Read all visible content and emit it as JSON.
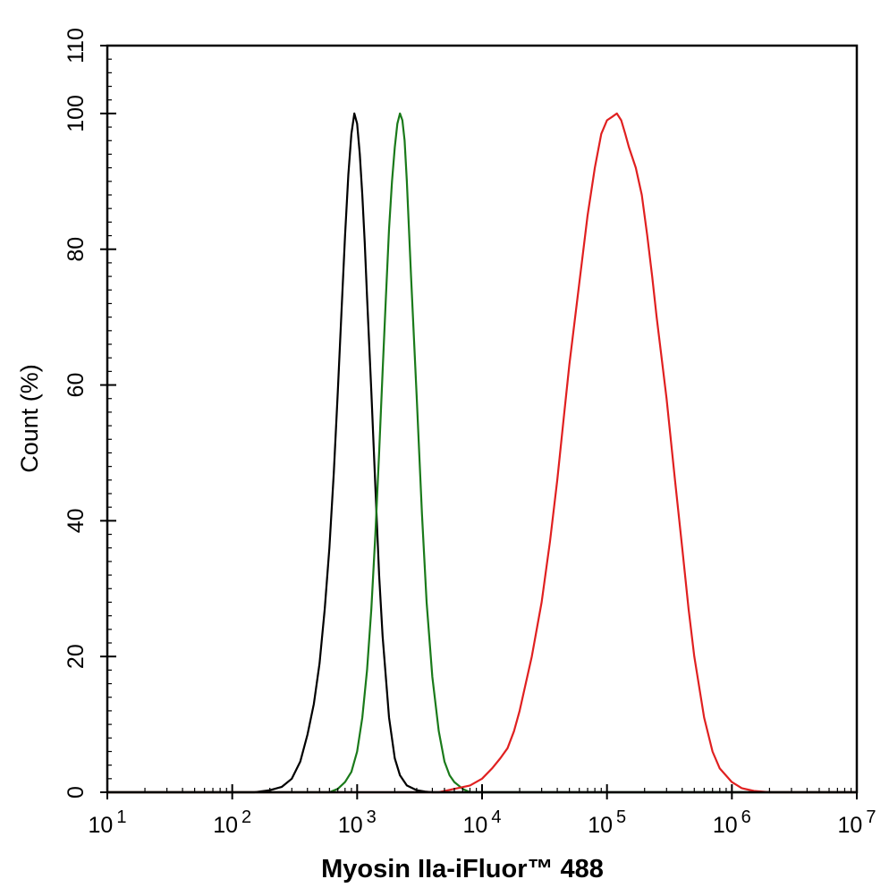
{
  "chart_data": {
    "type": "line",
    "title": "",
    "xlabel": "Myosin IIa-iFluor™ 488",
    "ylabel": "Count  (%)",
    "x_scale": "log",
    "xlim": [
      10,
      10000000
    ],
    "ylim": [
      0,
      110
    ],
    "grid": false,
    "legend": "none",
    "x_ticks": [
      {
        "base": "10",
        "exp": "1"
      },
      {
        "base": "10",
        "exp": "2"
      },
      {
        "base": "10",
        "exp": "3"
      },
      {
        "base": "10",
        "exp": "4"
      },
      {
        "base": "10",
        "exp": "5"
      },
      {
        "base": "10",
        "exp": "6"
      },
      {
        "base": "10",
        "exp": "7"
      }
    ],
    "y_ticks": [
      "0",
      "20",
      "40",
      "60",
      "80",
      "100",
      "110"
    ],
    "series": [
      {
        "color": "#000000",
        "x": [
          10,
          150,
          200,
          250,
          300,
          350,
          400,
          450,
          500,
          550,
          600,
          650,
          700,
          750,
          800,
          850,
          900,
          950,
          1000,
          1050,
          1100,
          1150,
          1200,
          1300,
          1400,
          1500,
          1600,
          1800,
          2000,
          2200,
          2500,
          3000,
          3500,
          4000,
          10000000
        ],
        "y": [
          0,
          0,
          0.3,
          0.8,
          2,
          4.5,
          8.5,
          13,
          19,
          27,
          36,
          47,
          59,
          71,
          82,
          91,
          97,
          100,
          98.5,
          94,
          88,
          81,
          73,
          59,
          45,
          32,
          23,
          11,
          5,
          2.5,
          1,
          0.3,
          0.1,
          0,
          0
        ]
      },
      {
        "color": "#1a7a1a",
        "x": [
          10,
          600,
          700,
          800,
          900,
          1000,
          1100,
          1200,
          1300,
          1400,
          1500,
          1600,
          1700,
          1800,
          1900,
          2000,
          2100,
          2200,
          2300,
          2400,
          2500,
          2700,
          3000,
          3300,
          3600,
          4000,
          4500,
          5000,
          5500,
          6000,
          7000,
          8000,
          10000000
        ],
        "y": [
          0,
          0,
          0.5,
          1.5,
          3,
          6,
          11,
          18,
          27,
          38,
          50,
          62,
          73,
          83,
          90,
          95,
          98.5,
          100,
          99,
          96,
          90,
          76,
          58,
          41,
          28,
          17,
          9,
          4.5,
          2.5,
          1.5,
          0.5,
          0,
          0
        ]
      },
      {
        "color": "#e02020",
        "x": [
          10,
          4500,
          6000,
          8000,
          10000,
          12000,
          14000,
          16000,
          18000,
          20000,
          25000,
          30000,
          35000,
          40000,
          45000,
          50000,
          60000,
          70000,
          80000,
          90000,
          100000,
          110000,
          120000,
          130000,
          140000,
          150000,
          170000,
          190000,
          210000,
          230000,
          250000,
          300000,
          350000,
          400000,
          450000,
          500000,
          600000,
          700000,
          800000,
          1000000,
          1200000,
          1500000,
          2000000,
          10000000
        ],
        "y": [
          0,
          0,
          0.5,
          1,
          2,
          3.5,
          5,
          6.5,
          9,
          12,
          20,
          28,
          37,
          46,
          55,
          63,
          75,
          85,
          92,
          97,
          99,
          99.5,
          100,
          99,
          97,
          95,
          92,
          88,
          82,
          76,
          70,
          58,
          46,
          36,
          27,
          20,
          11,
          6,
          3.5,
          1.5,
          0.6,
          0.2,
          0,
          0
        ]
      }
    ]
  }
}
